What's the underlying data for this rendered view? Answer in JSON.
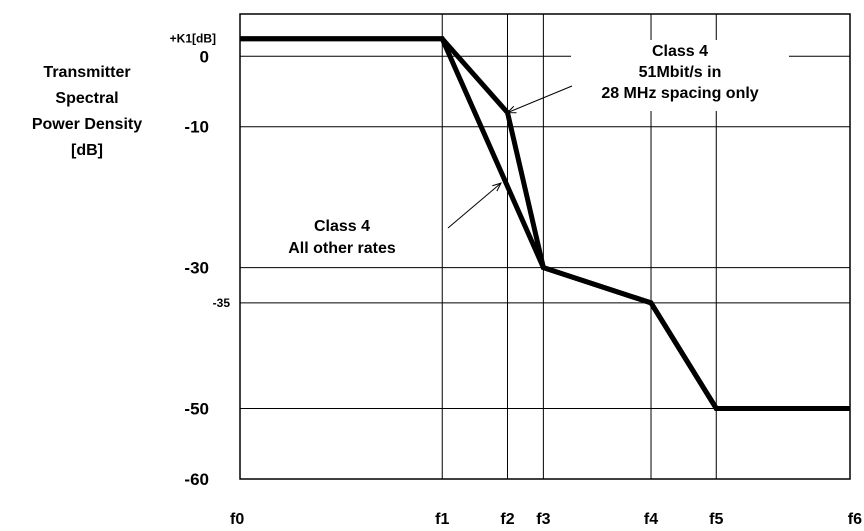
{
  "chart_data": {
    "type": "line",
    "ylabel_lines": [
      "Transmitter",
      "Spectral",
      "Power Density",
      "[dB]"
    ],
    "x_ticks": [
      "f0",
      "f1",
      "f2",
      "f3",
      "f4",
      "f5",
      "f6"
    ],
    "y_ticks": [
      {
        "label": "+K1[dB]",
        "value": 2.5
      },
      {
        "label": "0",
        "value": 0
      },
      {
        "label": "-10",
        "value": -10
      },
      {
        "label": "-30",
        "value": -30
      },
      {
        "label": "-35",
        "value": -35
      },
      {
        "label": "-50",
        "value": -50
      },
      {
        "label": "-60",
        "value": -60
      }
    ],
    "x_positions": {
      "f0": 0,
      "f1": 3.1,
      "f2": 4.1,
      "f3": 4.65,
      "f4": 6.3,
      "f5": 7.3,
      "f6": 9.35
    },
    "ylim": [
      -60,
      6
    ],
    "xlim": [
      0,
      9.35
    ],
    "series": [
      {
        "name": "Class 4 51Mbit/s in 28 MHz spacing only",
        "points": [
          [
            0,
            2.5
          ],
          [
            3.1,
            2.5
          ],
          [
            4.1,
            -8
          ],
          [
            4.65,
            -30
          ],
          [
            6.3,
            -35
          ],
          [
            7.3,
            -50
          ],
          [
            9.35,
            -50
          ]
        ]
      },
      {
        "name": "Class 4 All other rates",
        "points": [
          [
            0,
            2.5
          ],
          [
            3.1,
            2.5
          ],
          [
            4.65,
            -30
          ],
          [
            6.3,
            -35
          ],
          [
            7.3,
            -50
          ],
          [
            9.35,
            -50
          ]
        ]
      }
    ],
    "annotations": [
      {
        "lines": [
          "Class 4",
          "51Mbit/s in",
          "28 MHz spacing only"
        ],
        "arrow_to": [
          4.1,
          -8
        ]
      },
      {
        "lines": [
          "Class 4",
          "All other rates"
        ],
        "arrow_to": [
          4.0,
          -18
        ]
      }
    ]
  }
}
